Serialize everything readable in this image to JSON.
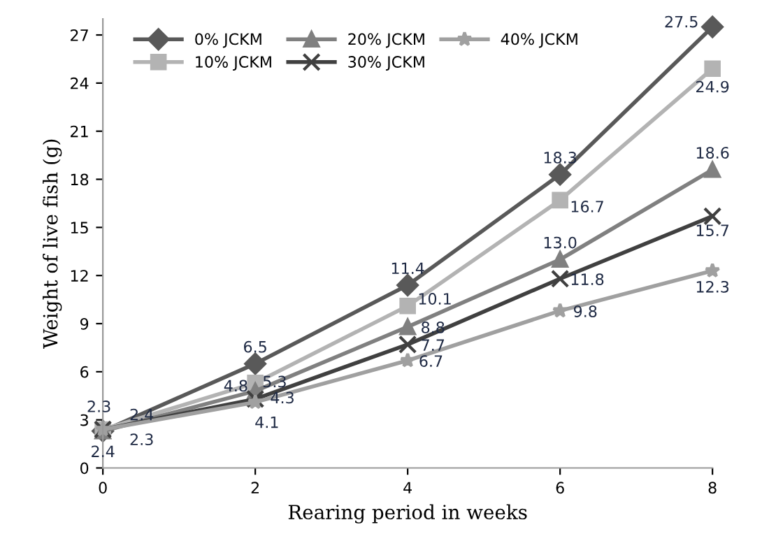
{
  "chart_data": {
    "type": "line",
    "xlabel": "Rearing period in weeks",
    "ylabel": "Weight of live fish (g)",
    "x": [
      0,
      2,
      4,
      6,
      8
    ],
    "xlim": [
      0,
      8
    ],
    "xticks": [
      0,
      2,
      4,
      6,
      8
    ],
    "ylim": [
      0,
      28
    ],
    "yticks": [
      0,
      3,
      6,
      9,
      12,
      15,
      18,
      21,
      24,
      27
    ],
    "grid": false,
    "legend": "top left",
    "series": [
      {
        "name": "0% JCKM",
        "color": "#595959",
        "marker": "diamond",
        "values": [
          2.3,
          6.5,
          11.4,
          18.3,
          27.5
        ],
        "value_labels": [
          "2.3",
          "6.5",
          "11.4",
          "18.3",
          "27.5"
        ]
      },
      {
        "name": "10% JCKM",
        "color": "#b3b3b3",
        "marker": "square",
        "values": [
          2.4,
          5.3,
          10.1,
          16.7,
          24.9
        ],
        "value_labels": [
          "2.4",
          "5.3",
          "10.1",
          "16.7",
          "24.9"
        ]
      },
      {
        "name": "20% JCKM",
        "color": "#808080",
        "marker": "triangle",
        "values": [
          2.3,
          4.8,
          8.8,
          13.0,
          18.6
        ],
        "value_labels": [
          "2.3",
          "4.8",
          "8.8",
          "13.0",
          "18.6"
        ]
      },
      {
        "name": "30% JCKM",
        "color": "#404040",
        "marker": "cross",
        "values": [
          2.4,
          4.3,
          7.7,
          11.8,
          15.7
        ],
        "value_labels": [
          "2.4",
          "4.3",
          "7.7",
          "11.8",
          "15.7"
        ]
      },
      {
        "name": "40% JCKM",
        "color": "#a0a0a0",
        "marker": "star",
        "values": [
          2.4,
          4.1,
          6.7,
          9.8,
          12.3
        ],
        "value_labels": [
          null,
          "4.1",
          "6.7",
          "9.8",
          "12.3"
        ]
      }
    ]
  }
}
